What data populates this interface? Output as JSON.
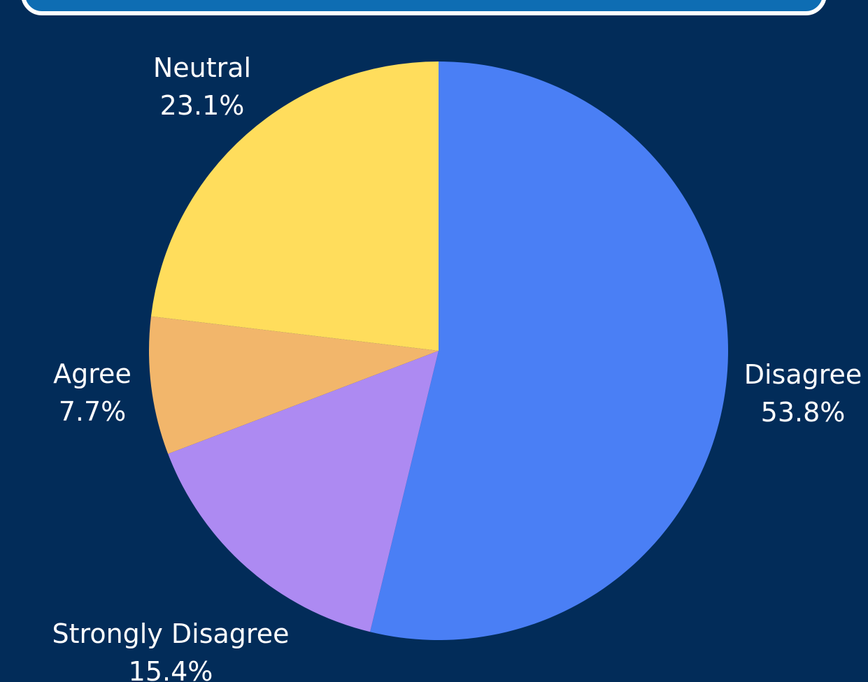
{
  "chart_data": {
    "type": "pie",
    "slices": [
      {
        "name": "Disagree",
        "value": 53.8,
        "label": "53.8%",
        "color": "#4A7FF5"
      },
      {
        "name": "Strongly Disagree",
        "value": 15.4,
        "label": "15.4%",
        "color": "#AD8AF2"
      },
      {
        "name": "Agree",
        "value": 7.7,
        "label": "7.7%",
        "color": "#F2B66B"
      },
      {
        "name": "Neutral",
        "value": 23.1,
        "label": "23.1%",
        "color": "#FFDD5C"
      }
    ]
  },
  "colors": {
    "background": "#022C59",
    "frame_fill": "#0E6DB3",
    "frame_border": "#FFFFFF",
    "label_text": "#FFFFFF"
  }
}
